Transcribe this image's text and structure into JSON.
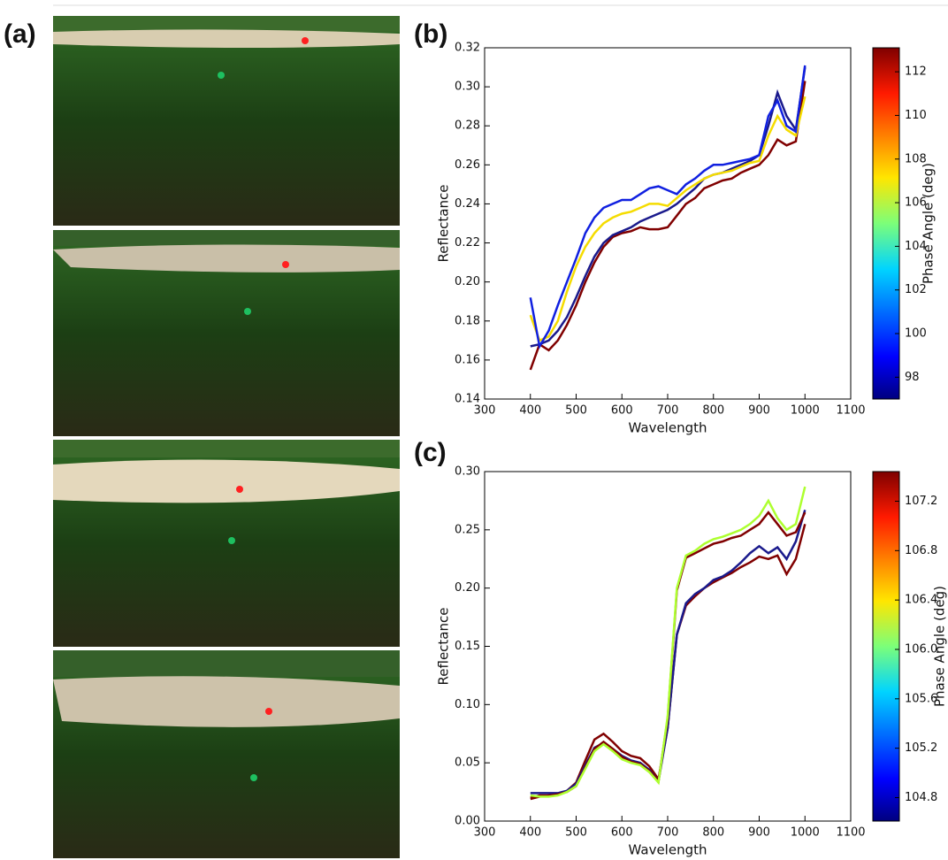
{
  "panel_labels": [
    "(a)",
    "(b)",
    "(c)"
  ],
  "chart_data": [
    {
      "type": "line",
      "xlabel": "Wavelength",
      "ylabel": "Reflectance",
      "x": [
        400,
        420,
        440,
        460,
        480,
        500,
        520,
        540,
        560,
        580,
        600,
        620,
        640,
        660,
        680,
        700,
        720,
        740,
        760,
        780,
        800,
        820,
        840,
        860,
        880,
        900,
        920,
        940,
        960,
        980,
        1000
      ],
      "xlim": [
        300,
        1100
      ],
      "xticks": [
        300,
        400,
        500,
        600,
        700,
        800,
        900,
        1000,
        1100
      ],
      "ylim": [
        0.14,
        0.32
      ],
      "yticks": [
        0.14,
        0.16,
        0.18,
        {
          "value": 0.2,
          "label": "0.20"
        },
        0.22,
        0.24,
        0.26,
        0.28,
        {
          "value": 0.3,
          "label": "0.30"
        },
        0.32
      ],
      "colorbar": {
        "label": "Phase Angle (deg)",
        "lim": [
          97,
          113.1
        ],
        "ticks": [
          98,
          100,
          102,
          104,
          106,
          108,
          110,
          112
        ]
      },
      "series": [
        {
          "color": "#800000",
          "values": [
            0.155,
            0.168,
            0.165,
            0.17,
            0.178,
            0.188,
            0.2,
            0.21,
            0.218,
            0.223,
            0.225,
            0.226,
            0.228,
            0.227,
            0.227,
            0.228,
            0.234,
            0.24,
            0.243,
            0.248,
            0.25,
            0.252,
            0.253,
            0.256,
            0.258,
            0.26,
            0.265,
            0.273,
            0.27,
            0.272,
            0.303
          ]
        },
        {
          "color": "#1a1a8c",
          "values": [
            0.167,
            0.168,
            0.17,
            0.175,
            0.182,
            0.192,
            0.203,
            0.213,
            0.22,
            0.224,
            0.226,
            0.228,
            0.231,
            0.233,
            0.235,
            0.237,
            0.24,
            0.244,
            0.248,
            0.253,
            0.255,
            0.256,
            0.258,
            0.26,
            0.262,
            0.265,
            0.28,
            0.297,
            0.285,
            0.278,
            0.31
          ]
        },
        {
          "color": "#f5dc00",
          "values": [
            0.183,
            0.17,
            0.172,
            0.18,
            0.195,
            0.208,
            0.218,
            0.225,
            0.23,
            0.233,
            0.235,
            0.236,
            0.238,
            0.24,
            0.24,
            0.239,
            0.243,
            0.247,
            0.25,
            0.253,
            0.255,
            0.256,
            0.257,
            0.259,
            0.261,
            0.262,
            0.275,
            0.285,
            0.278,
            0.275,
            0.295
          ]
        },
        {
          "color": "#1020e0",
          "values": [
            0.192,
            0.167,
            0.175,
            0.188,
            0.2,
            0.212,
            0.225,
            0.233,
            0.238,
            0.24,
            0.242,
            0.242,
            0.245,
            0.248,
            0.249,
            0.247,
            0.245,
            0.25,
            0.253,
            0.257,
            0.26,
            0.26,
            0.261,
            0.262,
            0.263,
            0.265,
            0.285,
            0.293,
            0.28,
            0.277,
            0.311
          ]
        }
      ]
    },
    {
      "type": "line",
      "xlabel": "Wavelength",
      "ylabel": "Reflectance",
      "x": [
        400,
        420,
        440,
        460,
        480,
        500,
        520,
        540,
        560,
        580,
        600,
        620,
        640,
        660,
        680,
        700,
        720,
        740,
        760,
        780,
        800,
        820,
        840,
        860,
        880,
        900,
        920,
        940,
        960,
        980,
        1000
      ],
      "xlim": [
        300,
        1100
      ],
      "xticks": [
        300,
        400,
        500,
        600,
        700,
        800,
        900,
        1000,
        1100
      ],
      "ylim": [
        0,
        0.3
      ],
      "yticks": [
        {
          "value": 0,
          "label": "0.00"
        },
        0.05,
        {
          "value": 0.1,
          "label": "0.10"
        },
        0.15,
        {
          "value": 0.2,
          "label": "0.20"
        },
        0.25,
        {
          "value": 0.3,
          "label": "0.30"
        }
      ],
      "colorbar": {
        "label": "Phase Angle (deg)",
        "lim": [
          104.61,
          107.44
        ],
        "ticks": [
          104.8,
          105.2,
          105.6,
          {
            "value": 106,
            "label": "106.0"
          },
          106.4,
          106.8,
          107.2
        ]
      },
      "series": [
        {
          "color": "#800000",
          "values": [
            0.019,
            0.021,
            0.022,
            0.023,
            0.026,
            0.033,
            0.052,
            0.07,
            0.075,
            0.068,
            0.06,
            0.056,
            0.054,
            0.047,
            0.036,
            0.08,
            0.16,
            0.185,
            0.193,
            0.2,
            0.205,
            0.209,
            0.213,
            0.218,
            0.222,
            0.227,
            0.225,
            0.228,
            0.212,
            0.225,
            0.255
          ]
        },
        {
          "color": "#1a1a8c",
          "values": [
            0.024,
            0.024,
            0.024,
            0.024,
            0.026,
            0.032,
            0.048,
            0.063,
            0.067,
            0.062,
            0.056,
            0.052,
            0.05,
            0.044,
            0.034,
            0.08,
            0.16,
            0.187,
            0.195,
            0.2,
            0.207,
            0.21,
            0.215,
            0.222,
            0.23,
            0.236,
            0.23,
            0.235,
            0.225,
            0.24,
            0.267
          ]
        },
        {
          "color": "#800000",
          "values": [
            0.02,
            0.022,
            0.022,
            0.023,
            0.025,
            0.03,
            0.046,
            0.062,
            0.068,
            0.062,
            0.055,
            0.051,
            0.049,
            0.043,
            0.034,
            0.088,
            0.198,
            0.226,
            0.23,
            0.234,
            0.238,
            0.24,
            0.243,
            0.245,
            0.25,
            0.255,
            0.265,
            0.255,
            0.245,
            0.248,
            0.265
          ]
        },
        {
          "color": "#adff2f",
          "values": [
            0.022,
            0.021,
            0.021,
            0.022,
            0.025,
            0.03,
            0.045,
            0.06,
            0.066,
            0.06,
            0.053,
            0.05,
            0.048,
            0.042,
            0.033,
            0.09,
            0.2,
            0.228,
            0.232,
            0.238,
            0.242,
            0.244,
            0.247,
            0.25,
            0.255,
            0.262,
            0.275,
            0.26,
            0.25,
            0.255,
            0.287
          ]
        }
      ]
    }
  ]
}
